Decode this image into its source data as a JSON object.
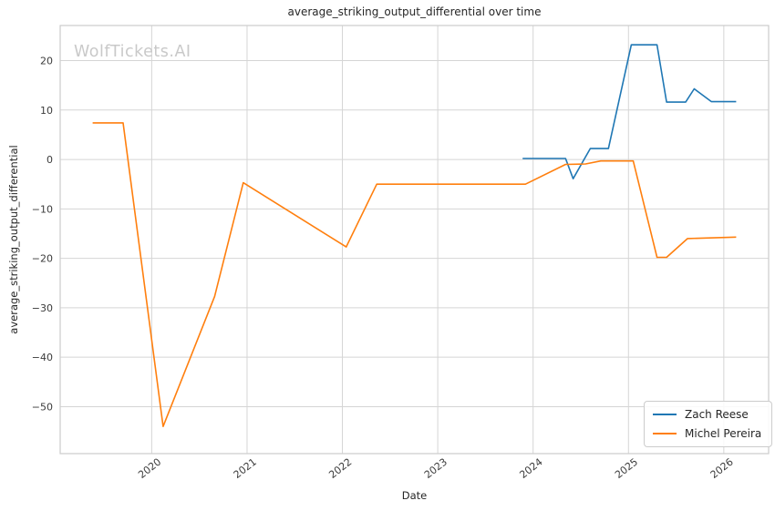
{
  "watermark": "WolfTickets.AI",
  "chart_data": {
    "type": "line",
    "title": "average_striking_output_differential over time",
    "xlabel": "Date",
    "ylabel": "average_striking_output_differential",
    "xlim": [
      2019.04,
      2026.47
    ],
    "ylim": [
      -59.5,
      27.1
    ],
    "grid": true,
    "legend_position": "lower right",
    "xticks": {
      "values": [
        2020,
        2021,
        2022,
        2023,
        2024,
        2025,
        2026
      ],
      "labels": [
        "2020",
        "2021",
        "2022",
        "2023",
        "2024",
        "2025",
        "2026"
      ]
    },
    "yticks": {
      "values": [
        20,
        10,
        0,
        -10,
        -20,
        -30,
        -40,
        -50
      ],
      "labels": [
        "20",
        "10",
        "0",
        "−10",
        "−20",
        "−30",
        "−40",
        "−50"
      ]
    },
    "series": [
      {
        "name": "Zach Reese",
        "color": "#1f77b4",
        "x": [
          2023.89,
          2024.34,
          2024.42,
          2024.6,
          2024.79,
          2025.03,
          2025.3,
          2025.4,
          2025.6,
          2025.69,
          2025.87,
          2026.13
        ],
        "y": [
          0.2,
          0.2,
          -3.9,
          2.2,
          2.2,
          23.2,
          23.2,
          11.6,
          11.6,
          14.3,
          11.7,
          11.7
        ]
      },
      {
        "name": "Michel Pereira",
        "color": "#ff7f0e",
        "x": [
          2019.38,
          2019.7,
          2020.12,
          2020.66,
          2020.96,
          2022.04,
          2022.36,
          2023.92,
          2024.34,
          2024.55,
          2024.71,
          2025.05,
          2025.3,
          2025.4,
          2025.62,
          2026.13
        ],
        "y": [
          7.4,
          7.4,
          -54.0,
          -27.7,
          -4.7,
          -17.7,
          -5.0,
          -5.0,
          -1.0,
          -0.9,
          -0.3,
          -0.3,
          -19.8,
          -19.8,
          -16.0,
          -15.7
        ]
      }
    ]
  }
}
